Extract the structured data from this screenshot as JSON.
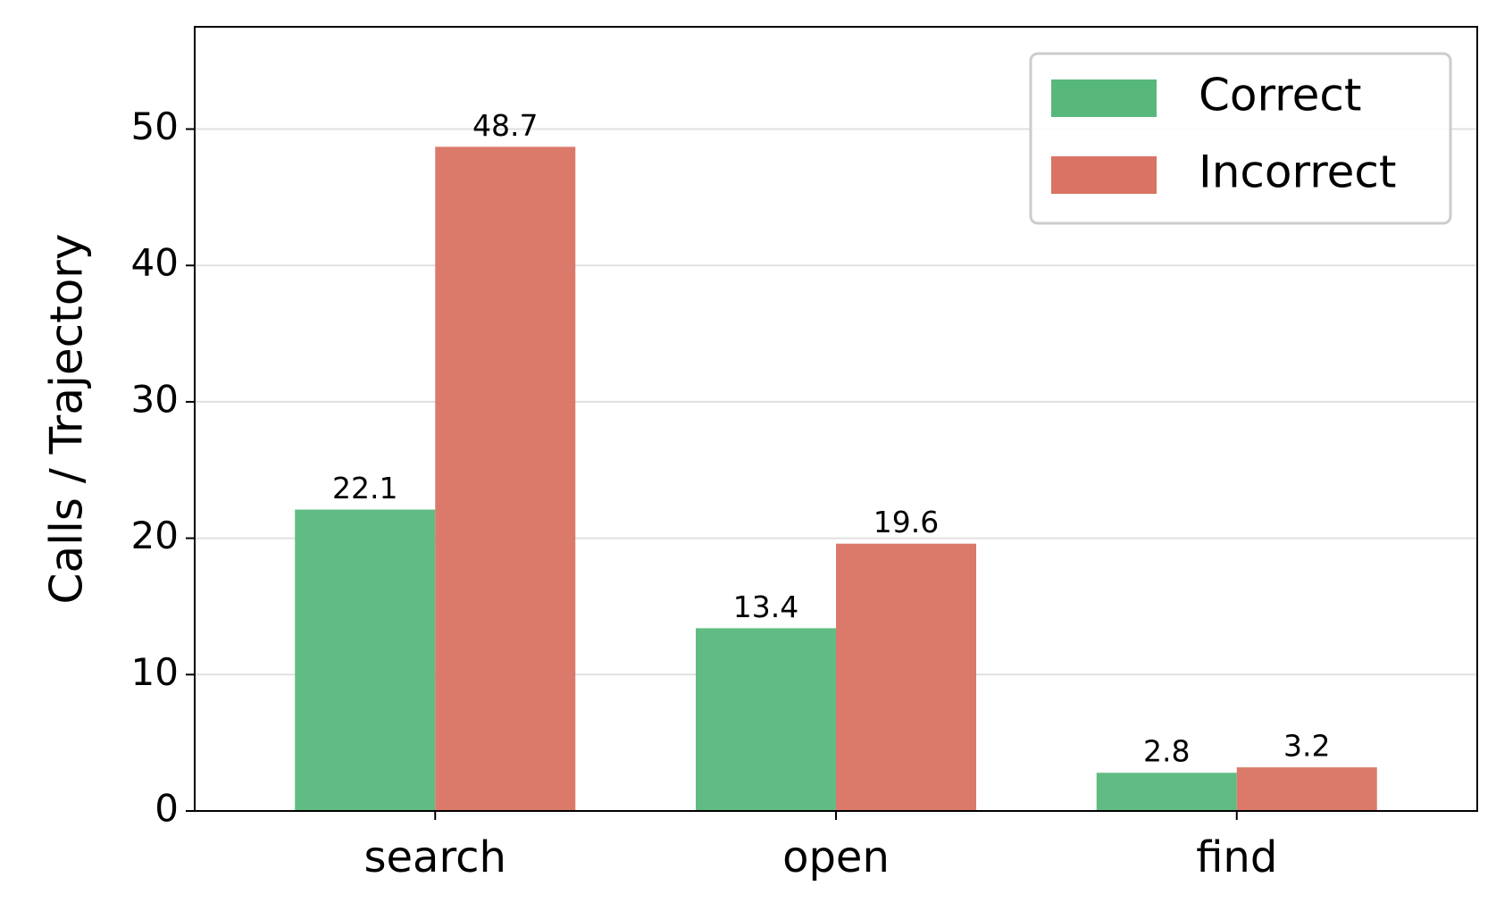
{
  "chart_data": {
    "type": "bar",
    "y_label": "Calls / Trajectory",
    "categories": [
      "search",
      "open",
      "find"
    ],
    "series": [
      {
        "name": "Correct",
        "color": "#58b87c",
        "values": [
          22.1,
          13.4,
          2.8
        ]
      },
      {
        "name": "Incorrect",
        "color": "#d97363",
        "values": [
          48.7,
          19.6,
          3.2
        ]
      }
    ],
    "ylim": [
      0,
      57.5
    ],
    "yticks": [
      0,
      10,
      20,
      30,
      40,
      50
    ],
    "grid": true,
    "legend": "upper right"
  }
}
